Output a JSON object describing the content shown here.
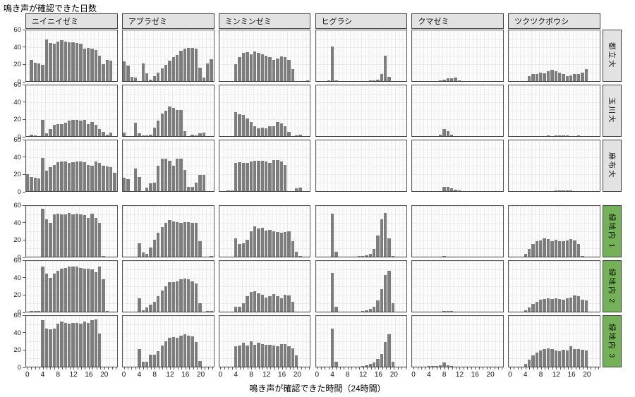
{
  "title": "鳴き声が確認できた日数",
  "x_axis_title": "鳴き声が確認できた時間（24時間）",
  "colors": {
    "bar": "#7d7d7d",
    "strip_gray": "#e2e2e2",
    "strip_green": "#74b258",
    "strip_border": "#3f3f3f",
    "panel_border": "#565656",
    "grid": "#eaeaea",
    "text": "#111111"
  },
  "chart_data": {
    "type": "bar",
    "layout": "facet-grid 6 columns (species) x 6 rows (sites), shared axes",
    "x_unit": "hour of day (0-23), one bar per hour",
    "x_ticks": [
      0,
      4,
      8,
      12,
      16,
      20
    ],
    "y_ticks": [
      0,
      20,
      40,
      60
    ],
    "ylim": [
      0,
      60
    ],
    "grid": true,
    "columns": [
      "ニイニイゼミ",
      "アブラゼミ",
      "ミンミンゼミ",
      "ヒグラシ",
      "クマゼミ",
      "ツクツクボウシ"
    ],
    "rows": [
      {
        "label": "都立大",
        "strip": "gray"
      },
      {
        "label": "玉川大",
        "strip": "gray"
      },
      {
        "label": "麻布大",
        "strip": "gray"
      },
      {
        "label": "緑地内 1",
        "strip": "green"
      },
      {
        "label": "緑地内 2",
        "strip": "green"
      },
      {
        "label": "緑地内 3",
        "strip": "green"
      }
    ],
    "values": {
      "都立大": {
        "ニイニイゼミ": [
          0,
          25,
          22,
          21,
          19,
          49,
          45,
          44,
          47,
          48,
          47,
          46,
          46,
          45,
          44,
          38,
          39,
          38,
          37,
          30,
          20,
          25,
          24,
          0
        ],
        "アブラゼミ": [
          23,
          18,
          5,
          4,
          0,
          21,
          9,
          2,
          6,
          10,
          15,
          19,
          24,
          28,
          31,
          36,
          38,
          39,
          39,
          38,
          16,
          4,
          21,
          26
        ],
        "ミンミンゼミ": [
          0,
          0,
          0,
          0,
          20,
          28,
          33,
          34,
          32,
          35,
          33,
          32,
          30,
          28,
          25,
          27,
          29,
          28,
          25,
          14,
          0,
          0,
          0,
          1
        ],
        "ヒグラシ": [
          0,
          0,
          0,
          1,
          41,
          1,
          0,
          0,
          0,
          0,
          0,
          0,
          0,
          0,
          1,
          1,
          2,
          8,
          30,
          5,
          0,
          0,
          0,
          0
        ],
        "クマゼミ": [
          0,
          0,
          0,
          0,
          0,
          0,
          0,
          1,
          2,
          3,
          3,
          4,
          1,
          0,
          0,
          0,
          0,
          0,
          0,
          0,
          0,
          0,
          0,
          0
        ],
        "ツクツクボウシ": [
          0,
          0,
          0,
          0,
          0,
          6,
          8,
          8,
          10,
          9,
          12,
          13,
          12,
          10,
          8,
          6,
          7,
          8,
          8,
          10,
          14,
          0,
          0,
          0
        ]
      },
      "玉川大": {
        "ニイニイゼミ": [
          0,
          2,
          1,
          0,
          19,
          3,
          8,
          13,
          14,
          14,
          16,
          18,
          19,
          19,
          18,
          19,
          14,
          17,
          13,
          8,
          5,
          2,
          4,
          0
        ],
        "アブラゼミ": [
          4,
          0,
          0,
          16,
          3,
          1,
          1,
          2,
          10,
          18,
          27,
          30,
          35,
          33,
          31,
          31,
          6,
          0,
          2,
          1,
          3,
          4,
          0,
          0
        ],
        "ミンミンゼミ": [
          0,
          0,
          0,
          0,
          28,
          26,
          25,
          21,
          17,
          12,
          9,
          10,
          9,
          12,
          12,
          17,
          15,
          12,
          5,
          0,
          1,
          2,
          0,
          0
        ],
        "ヒグラシ": [
          0,
          0,
          0,
          0,
          0,
          0,
          0,
          0,
          0,
          0,
          0,
          0,
          0,
          0,
          0,
          0,
          0,
          0,
          0,
          0,
          0,
          0,
          0,
          0
        ],
        "クマゼミ": [
          0,
          0,
          0,
          0,
          0,
          0,
          0,
          2,
          8,
          6,
          2,
          0,
          0,
          0,
          0,
          0,
          0,
          0,
          0,
          0,
          0,
          0,
          0,
          0
        ],
        "ツクツクボウシ": [
          0,
          0,
          0,
          0,
          0,
          0,
          0,
          0,
          0,
          0,
          1,
          0,
          1,
          1,
          1,
          1,
          0,
          0,
          1,
          0,
          0,
          0,
          0,
          0
        ]
      },
      "麻布大": {
        "ニイニイゼミ": [
          20,
          17,
          16,
          15,
          39,
          24,
          28,
          31,
          34,
          35,
          35,
          33,
          34,
          35,
          35,
          34,
          31,
          30,
          35,
          33,
          30,
          29,
          28,
          22
        ],
        "アブラゼミ": [
          16,
          14,
          0,
          27,
          17,
          0,
          4,
          9,
          10,
          30,
          38,
          38,
          36,
          30,
          38,
          38,
          25,
          5,
          5,
          10,
          19,
          19,
          0,
          0
        ],
        "ミンミンゼミ": [
          0,
          0,
          1,
          1,
          33,
          34,
          33,
          33,
          35,
          36,
          36,
          36,
          35,
          33,
          37,
          37,
          35,
          31,
          0,
          0,
          3,
          4,
          0,
          0
        ],
        "ヒグラシ": [
          0,
          0,
          0,
          0,
          0,
          0,
          0,
          0,
          0,
          0,
          0,
          0,
          0,
          0,
          0,
          0,
          0,
          0,
          0,
          0,
          0,
          0,
          0,
          0
        ],
        "クマゼミ": [
          0,
          0,
          0,
          0,
          0,
          0,
          0,
          0,
          5,
          5,
          3,
          2,
          1,
          0,
          0,
          0,
          0,
          0,
          0,
          0,
          0,
          0,
          0,
          0
        ],
        "ツクツクボウシ": [
          0,
          0,
          0,
          0,
          0,
          0,
          0,
          0,
          0,
          0,
          0,
          0,
          1,
          1,
          1,
          1,
          1,
          0,
          0,
          0,
          0,
          0,
          0,
          0
        ]
      },
      "緑地内 1": {
        "ニイニイゼミ": [
          0,
          0,
          0,
          0,
          57,
          44,
          40,
          50,
          51,
          50,
          50,
          52,
          50,
          51,
          50,
          49,
          46,
          51,
          46,
          40,
          1,
          0,
          0,
          0
        ],
        "アブラゼミ": [
          0,
          0,
          0,
          0,
          16,
          5,
          3,
          11,
          20,
          28,
          35,
          40,
          43,
          42,
          41,
          40,
          41,
          41,
          40,
          40,
          18,
          0,
          0,
          1
        ],
        "ミンミンゼミ": [
          0,
          0,
          0,
          0,
          22,
          15,
          16,
          20,
          30,
          36,
          33,
          34,
          31,
          32,
          30,
          29,
          28,
          29,
          30,
          18,
          6,
          1,
          0,
          0
        ],
        "ヒグラシ": [
          0,
          0,
          0,
          0,
          51,
          6,
          0,
          0,
          0,
          0,
          0,
          1,
          1,
          2,
          3,
          9,
          25,
          44,
          52,
          22,
          1,
          0,
          0,
          0
        ],
        "クマゼミ": [
          0,
          0,
          0,
          0,
          0,
          0,
          0,
          0,
          1,
          0,
          0,
          0,
          0,
          0,
          0,
          0,
          0,
          0,
          0,
          0,
          0,
          0,
          0,
          0
        ],
        "ツクツクボウシ": [
          0,
          0,
          0,
          0,
          3,
          9,
          15,
          18,
          19,
          22,
          21,
          18,
          20,
          18,
          18,
          19,
          21,
          19,
          15,
          1,
          0,
          0,
          0,
          0
        ]
      },
      "緑地内 2": {
        "ニイニイゼミ": [
          0,
          1,
          1,
          1,
          53,
          45,
          40,
          45,
          48,
          51,
          52,
          53,
          53,
          53,
          52,
          51,
          51,
          50,
          47,
          53,
          38,
          1,
          0,
          0
        ],
        "アブラゼミ": [
          0,
          0,
          0,
          0,
          16,
          2,
          5,
          8,
          12,
          18,
          25,
          30,
          35,
          35,
          36,
          38,
          39,
          38,
          36,
          33,
          10,
          0,
          1,
          1
        ],
        "ミンミンゼミ": [
          0,
          0,
          0,
          0,
          6,
          6,
          10,
          18,
          23,
          24,
          22,
          20,
          17,
          18,
          21,
          18,
          16,
          20,
          19,
          12,
          0,
          0,
          0,
          0
        ],
        "ヒグラシ": [
          0,
          0,
          0,
          0,
          46,
          6,
          0,
          0,
          0,
          0,
          0,
          0,
          1,
          2,
          3,
          6,
          13,
          27,
          43,
          48,
          10,
          0,
          0,
          0
        ],
        "クマゼミ": [
          0,
          0,
          0,
          0,
          0,
          0,
          0,
          0,
          1,
          1,
          1,
          0,
          0,
          0,
          0,
          0,
          0,
          0,
          0,
          0,
          0,
          0,
          0,
          0
        ],
        "ツクツクボウシ": [
          0,
          0,
          0,
          0,
          2,
          5,
          9,
          12,
          14,
          15,
          16,
          15,
          16,
          15,
          14,
          16,
          17,
          19,
          18,
          14,
          13,
          0,
          0,
          0
        ]
      },
      "緑地内 3": {
        "ニイニイゼミ": [
          0,
          0,
          0,
          0,
          55,
          45,
          44,
          45,
          51,
          53,
          52,
          51,
          52,
          52,
          51,
          53,
          52,
          55,
          56,
          39,
          0,
          0,
          0,
          0
        ],
        "アブラゼミ": [
          0,
          0,
          0,
          0,
          21,
          6,
          6,
          14,
          14,
          18,
          25,
          30,
          34,
          35,
          34,
          37,
          38,
          37,
          36,
          29,
          7,
          0,
          0,
          0
        ],
        "ミンミンゼミ": [
          0,
          0,
          0,
          0,
          24,
          25,
          28,
          25,
          30,
          26,
          28,
          27,
          26,
          26,
          25,
          24,
          27,
          27,
          24,
          22,
          13,
          0,
          0,
          0
        ],
        "ヒグラシ": [
          0,
          0,
          0,
          0,
          45,
          6,
          0,
          0,
          0,
          0,
          0,
          0,
          1,
          2,
          3,
          5,
          9,
          15,
          29,
          38,
          6,
          0,
          0,
          0
        ],
        "クマゼミ": [
          0,
          0,
          0,
          0,
          1,
          1,
          1,
          2,
          5,
          2,
          1,
          0,
          0,
          0,
          0,
          0,
          0,
          0,
          0,
          0,
          0,
          0,
          0,
          0
        ],
        "ツクツクボウシ": [
          0,
          0,
          0,
          0,
          3,
          8,
          13,
          17,
          19,
          21,
          22,
          21,
          19,
          18,
          20,
          19,
          24,
          21,
          21,
          20,
          19,
          0,
          0,
          0
        ]
      }
    }
  }
}
